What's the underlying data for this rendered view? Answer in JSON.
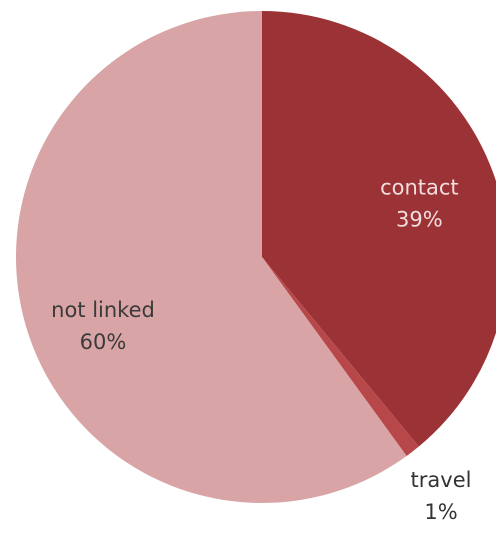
{
  "chart_data": {
    "type": "pie",
    "title": "",
    "slices": [
      {
        "label": "contact",
        "value": 39,
        "percent_label": "39%",
        "color": "#9b3235",
        "label_color": "#f3dede",
        "inside": true
      },
      {
        "label": "travel",
        "value": 1,
        "percent_label": "1%",
        "color": "#b8474a",
        "label_color": "#333333",
        "inside": false
      },
      {
        "label": "not linked",
        "value": 60,
        "percent_label": "60%",
        "color": "#d9a4a6",
        "label_color": "#3a3a3a",
        "inside": true
      }
    ],
    "start_angle_deg": 0,
    "direction": "clockwise",
    "legend": "none",
    "data_labels": "category and percent"
  }
}
